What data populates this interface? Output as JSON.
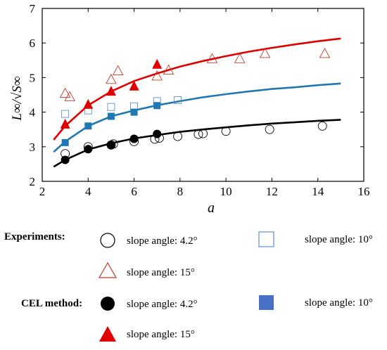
{
  "chart_data": {
    "type": "scatter",
    "xlabel": "a",
    "ylabel": "L∞/√S∞",
    "xlim": [
      2,
      16
    ],
    "ylim": [
      2,
      7
    ],
    "xticks": [
      "2",
      "4",
      "6",
      "8",
      "10",
      "12",
      "14",
      "16"
    ],
    "yticks": [
      "2",
      "3",
      "4",
      "5",
      "6",
      "7"
    ],
    "colors": {
      "s42": "#000000",
      "s10": "#1f77b4",
      "s15": "#e00000",
      "s10_light": "#5b8fd8",
      "s15_light": "#c0392b"
    },
    "series": [
      {
        "name": "Experiments: slope angle: 4.2°",
        "marker": "circle-open",
        "color": "#000000",
        "x": [
          3.0,
          4.0,
          5.0,
          5.1,
          6.0,
          6.9,
          7.1,
          7.9,
          8.8,
          9.0,
          10.0,
          11.9,
          14.2
        ],
        "y": [
          2.8,
          3.0,
          3.05,
          3.08,
          3.15,
          3.22,
          3.25,
          3.3,
          3.36,
          3.38,
          3.45,
          3.5,
          3.6
        ]
      },
      {
        "name": "Experiments: slope angle: 10°",
        "marker": "square-open",
        "color": "#5b8fd8",
        "x": [
          3.0,
          4.0,
          5.0,
          6.0,
          7.0,
          7.9
        ],
        "y": [
          3.95,
          4.05,
          4.15,
          4.17,
          4.32,
          4.35
        ]
      },
      {
        "name": "Experiments: slope angle: 15°",
        "marker": "triangle-open",
        "color": "#c0392b",
        "x": [
          3.0,
          3.2,
          5.0,
          5.3,
          7.0,
          7.5,
          9.4,
          10.6,
          11.7,
          14.3
        ],
        "y": [
          4.55,
          4.45,
          4.95,
          5.2,
          5.05,
          5.22,
          5.55,
          5.55,
          5.7,
          5.7
        ]
      },
      {
        "name": "CEL method: slope angle: 4.2°",
        "marker": "circle-filled",
        "color": "#000000",
        "x": [
          3,
          4,
          5,
          6,
          7
        ],
        "y": [
          2.62,
          2.93,
          3.05,
          3.23,
          3.37
        ]
      },
      {
        "name": "CEL method: slope angle: 10°",
        "marker": "square-filled",
        "color": "#1f77b4",
        "x": [
          3,
          4,
          5,
          6,
          7
        ],
        "y": [
          3.12,
          3.6,
          3.88,
          4.0,
          4.19
        ]
      },
      {
        "name": "CEL method: slope angle: 15°",
        "marker": "triangle-filled",
        "color": "#e00000",
        "x": [
          3,
          4,
          5,
          6,
          7
        ],
        "y": [
          3.65,
          4.22,
          4.6,
          4.75,
          5.38
        ]
      }
    ],
    "fit_curves": [
      {
        "color": "#000000",
        "x": [
          2.5,
          3,
          4,
          5,
          6,
          7,
          8,
          9,
          10,
          11,
          12,
          13,
          14,
          15
        ],
        "y": [
          2.42,
          2.62,
          2.92,
          3.1,
          3.24,
          3.34,
          3.43,
          3.5,
          3.56,
          3.62,
          3.67,
          3.71,
          3.75,
          3.78
        ]
      },
      {
        "color": "#1f77b4",
        "x": [
          2.5,
          3,
          4,
          5,
          6,
          7,
          8,
          9,
          10,
          11,
          12,
          13,
          14,
          15
        ],
        "y": [
          2.85,
          3.15,
          3.6,
          3.88,
          4.05,
          4.2,
          4.32,
          4.43,
          4.52,
          4.6,
          4.67,
          4.72,
          4.78,
          4.83
        ]
      },
      {
        "color": "#e00000",
        "x": [
          2.5,
          3,
          4,
          5,
          6,
          7,
          8,
          9,
          10,
          11,
          12,
          13,
          14,
          15
        ],
        "y": [
          3.2,
          3.6,
          4.2,
          4.6,
          4.9,
          5.12,
          5.32,
          5.48,
          5.62,
          5.75,
          5.86,
          5.96,
          6.05,
          6.13
        ]
      }
    ]
  },
  "legend": {
    "experiments_title": "Experiments:",
    "cel_title": "CEL method:",
    "label_42": "slope angle: 4.2°",
    "label_10": "slope angle: 10°",
    "label_15": "slope angle: 15°"
  }
}
